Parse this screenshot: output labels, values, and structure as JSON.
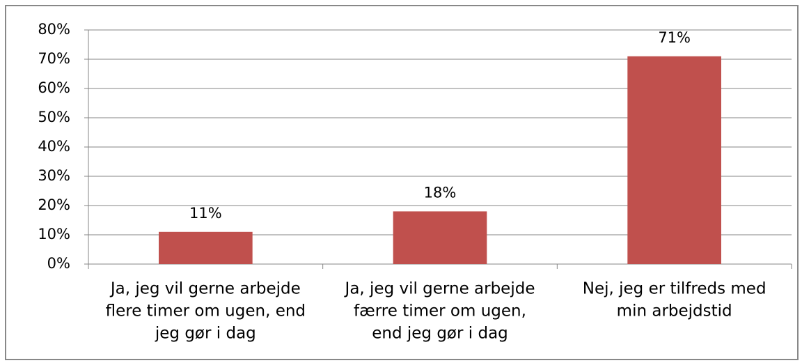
{
  "chart_data": {
    "type": "bar",
    "categories": [
      [
        "Ja, jeg vil gerne arbejde",
        "flere timer om ugen, end",
        "jeg gør i dag"
      ],
      [
        "Ja, jeg vil gerne arbejde",
        "færre timer om ugen,",
        "end jeg gør i dag"
      ],
      [
        "Nej, jeg er tilfreds med",
        "min arbejdstid"
      ]
    ],
    "values": [
      11,
      18,
      71
    ],
    "value_labels": [
      "11%",
      "18%",
      "71%"
    ],
    "color": "#c0504d",
    "ylim": [
      0,
      80
    ],
    "yticks": [
      {
        "value": 0,
        "label": "0%"
      },
      {
        "value": 10,
        "label": "10%"
      },
      {
        "value": 20,
        "label": "20%"
      },
      {
        "value": 30,
        "label": "30%"
      },
      {
        "value": 40,
        "label": "40%"
      },
      {
        "value": 50,
        "label": "50%"
      },
      {
        "value": 60,
        "label": "60%"
      },
      {
        "value": 70,
        "label": "70%"
      },
      {
        "value": 80,
        "label": "80%"
      }
    ],
    "grid": true
  }
}
